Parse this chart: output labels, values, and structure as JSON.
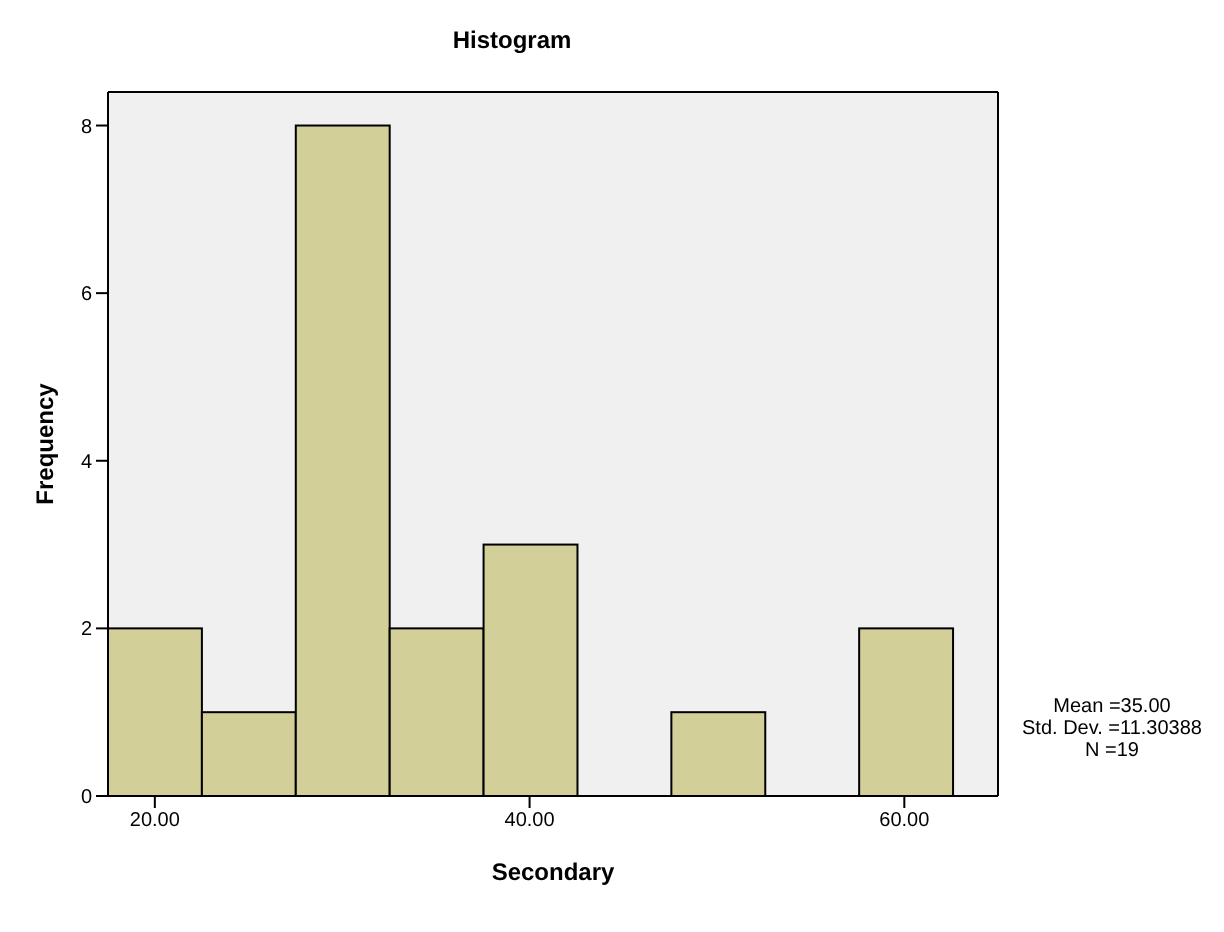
{
  "chart_data": {
    "type": "histogram",
    "title": "Histogram",
    "xlabel": "Secondary",
    "ylabel": "Frequency",
    "bins": [
      17.5,
      22.5,
      27.5,
      32.5,
      37.5,
      42.5,
      47.5,
      52.5,
      57.5,
      62.5
    ],
    "values": [
      2,
      1,
      8,
      2,
      3,
      0,
      1,
      0,
      2
    ],
    "color": "#d3cf99",
    "xlim": [
      17.5,
      65
    ],
    "xticks": [
      {
        "value": 20,
        "label": "20.00"
      },
      {
        "value": 40,
        "label": "40.00"
      },
      {
        "value": 60,
        "label": "60.00"
      }
    ],
    "ylim": [
      0,
      8.4
    ],
    "yticks": [
      0,
      2,
      4,
      6,
      8
    ],
    "annotations": [
      "Mean =35.00",
      "Std. Dev. =11.30388",
      "N =19"
    ]
  }
}
